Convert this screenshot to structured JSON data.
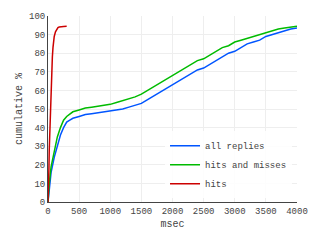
{
  "chart_data": {
    "type": "line",
    "xlabel": "msec",
    "ylabel": "cumulative %",
    "xlim": [
      0,
      4000
    ],
    "ylim": [
      0,
      100
    ],
    "xticks": [
      0,
      500,
      1000,
      1500,
      2000,
      2500,
      3000,
      3500,
      4000
    ],
    "yticks": [
      0,
      10,
      20,
      30,
      40,
      50,
      60,
      70,
      80,
      90,
      100
    ],
    "grid": true,
    "legend": "lower right",
    "series": [
      {
        "name": "all replies",
        "color": "#0055ff",
        "x": [
          0,
          10,
          20,
          50,
          100,
          150,
          200,
          250,
          300,
          350,
          400,
          500,
          600,
          700,
          800,
          900,
          1000,
          1100,
          1200,
          1300,
          1400,
          1500,
          1600,
          1700,
          1800,
          1900,
          2000,
          2100,
          2200,
          2300,
          2400,
          2500,
          2600,
          2700,
          2800,
          2900,
          3000,
          3100,
          3200,
          3300,
          3400,
          3500,
          3600,
          3700,
          3800,
          3900,
          4000
        ],
        "values": [
          0,
          4,
          8,
          16,
          24,
          30,
          36,
          40,
          43,
          44,
          45,
          46,
          47,
          47.5,
          48,
          48.5,
          49,
          49.5,
          50,
          51,
          52,
          53,
          55,
          57,
          59,
          61,
          63,
          65,
          67,
          69,
          71,
          72,
          74,
          76,
          78,
          80,
          81,
          83,
          85,
          86,
          87,
          89,
          90,
          91,
          92,
          93,
          93.5
        ]
      },
      {
        "name": "hits and misses",
        "color": "#00bb00",
        "x": [
          0,
          10,
          20,
          50,
          100,
          150,
          200,
          250,
          300,
          350,
          400,
          500,
          600,
          700,
          800,
          900,
          1000,
          1100,
          1200,
          1300,
          1400,
          1500,
          1600,
          1700,
          1800,
          1900,
          2000,
          2100,
          2200,
          2300,
          2400,
          2500,
          2600,
          2700,
          2800,
          2900,
          3000,
          3100,
          3200,
          3300,
          3400,
          3500,
          3600,
          3700,
          3800,
          3900,
          4000
        ],
        "values": [
          0,
          5,
          10,
          19,
          28,
          35,
          40,
          44,
          46,
          47.5,
          48.5,
          49.5,
          50.5,
          51,
          51.5,
          52,
          52.5,
          53.5,
          54.5,
          55.5,
          56.5,
          58,
          60,
          62,
          64,
          66,
          68,
          70,
          72,
          74,
          76,
          77,
          79,
          81,
          83,
          84,
          86,
          87,
          88,
          89,
          90,
          91,
          92,
          93,
          93.5,
          94,
          94.5
        ]
      },
      {
        "name": "hits",
        "color": "#cc0000",
        "x": [
          0,
          5,
          10,
          15,
          20,
          30,
          40,
          50,
          60,
          70,
          80,
          90,
          100,
          120,
          140,
          160,
          180,
          200,
          250,
          300
        ],
        "values": [
          0,
          4,
          10,
          18,
          28,
          40,
          52,
          63,
          72,
          78,
          83,
          87,
          89,
          91.5,
          93,
          93.8,
          94.1,
          94.3,
          94.4,
          94.45
        ]
      }
    ]
  }
}
